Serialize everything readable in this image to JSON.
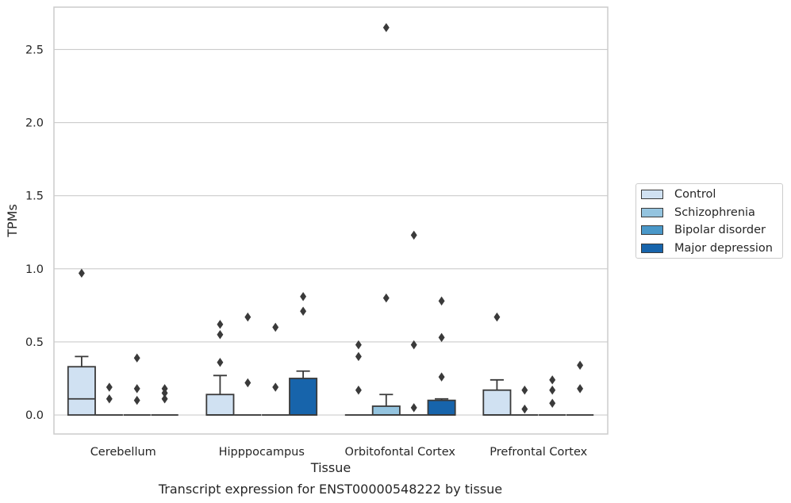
{
  "chart_data": {
    "type": "box",
    "xlabel": "Tissue",
    "ylabel": "TPMs",
    "ylim": [
      -0.13,
      2.79
    ],
    "yticks": [
      0.0,
      0.5,
      1.0,
      1.5,
      2.0,
      2.5
    ],
    "ytick_labels": [
      "0.0",
      "0.5",
      "1.0",
      "1.5",
      "2.0",
      "2.5"
    ],
    "grid": "y",
    "legend_position": "right",
    "categories": [
      "Cerebellum",
      "Hipppocampus",
      "Orbitofontal Cortex",
      "Prefrontal Cortex"
    ],
    "series": [
      {
        "name": "Control",
        "color": "#d0e1f2",
        "boxes": [
          {
            "min": 0,
            "q1": 0,
            "median": 0.11,
            "q3": 0.33,
            "max": 0.4,
            "outliers": [
              0.97
            ]
          },
          {
            "min": 0,
            "q1": 0,
            "median": 0,
            "q3": 0.14,
            "max": 0.27,
            "outliers": [
              0.36,
              0.55,
              0.62
            ]
          },
          {
            "min": 0,
            "q1": 0,
            "median": 0,
            "q3": 0,
            "max": 0,
            "outliers": [
              0.17,
              0.4,
              0.48
            ]
          },
          {
            "min": 0,
            "q1": 0,
            "median": 0,
            "q3": 0.17,
            "max": 0.24,
            "outliers": [
              0.67
            ]
          }
        ]
      },
      {
        "name": "Schizophrenia",
        "color": "#94c4df",
        "boxes": [
          {
            "min": 0,
            "q1": 0,
            "median": 0,
            "q3": 0,
            "max": 0,
            "outliers": [
              0.11,
              0.19
            ]
          },
          {
            "min": 0,
            "q1": 0,
            "median": 0,
            "q3": 0,
            "max": 0,
            "outliers": [
              0.22,
              0.67
            ]
          },
          {
            "min": 0,
            "q1": 0,
            "median": 0,
            "q3": 0.06,
            "max": 0.14,
            "outliers": [
              0.8,
              2.65
            ]
          },
          {
            "min": 0,
            "q1": 0,
            "median": 0,
            "q3": 0,
            "max": 0,
            "outliers": [
              0.04,
              0.17
            ]
          }
        ]
      },
      {
        "name": "Bipolar disorder",
        "color": "#4a98c9",
        "boxes": [
          {
            "min": 0,
            "q1": 0,
            "median": 0,
            "q3": 0,
            "max": 0,
            "outliers": [
              0.1,
              0.18,
              0.39
            ]
          },
          {
            "min": 0,
            "q1": 0,
            "median": 0,
            "q3": 0,
            "max": 0,
            "outliers": [
              0.19,
              0.6
            ]
          },
          {
            "min": 0,
            "q1": 0,
            "median": 0,
            "q3": 0,
            "max": 0,
            "outliers": [
              0.05,
              0.48,
              1.23
            ]
          },
          {
            "min": 0,
            "q1": 0,
            "median": 0,
            "q3": 0,
            "max": 0,
            "outliers": [
              0.08,
              0.17,
              0.24
            ]
          }
        ]
      },
      {
        "name": "Major depression",
        "color": "#1764ab",
        "boxes": [
          {
            "min": 0,
            "q1": 0,
            "median": 0,
            "q3": 0,
            "max": 0,
            "outliers": [
              0.11,
              0.15,
              0.18
            ]
          },
          {
            "min": 0,
            "q1": 0,
            "median": 0,
            "q3": 0.25,
            "max": 0.3,
            "outliers": [
              0.71,
              0.81
            ]
          },
          {
            "min": 0,
            "q1": 0,
            "median": 0,
            "q3": 0.1,
            "max": 0.11,
            "outliers": [
              0.26,
              0.53,
              0.78
            ]
          },
          {
            "min": 0,
            "q1": 0,
            "median": 0,
            "q3": 0,
            "max": 0,
            "outliers": [
              0.18,
              0.34
            ]
          }
        ]
      }
    ]
  },
  "caption": "Transcript expression for ENST00000548222 by tissue",
  "colors": {
    "grid": "#cccccc",
    "axis_edge": "#cccccc",
    "box_edge": "#3a3a3a"
  }
}
